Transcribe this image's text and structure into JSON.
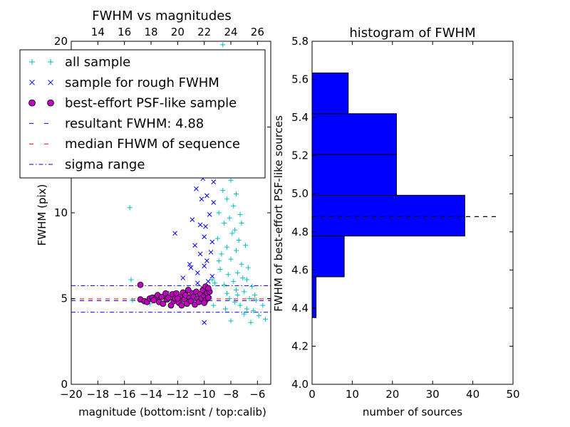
{
  "chart_data": [
    {
      "type": "scatter",
      "title": "FWHM vs magnitudes",
      "xlabel": "magnitude (bottom:isnt / top:calib)",
      "ylabel": "FWHM (pix)",
      "xlim": [
        -20,
        -5
      ],
      "ylim": [
        0,
        20
      ],
      "x_ticks": [
        "−20",
        "−18",
        "−16",
        "−14",
        "−12",
        "−10",
        "−8",
        "−6"
      ],
      "x_tick_values": [
        -20,
        -18,
        -16,
        -14,
        -12,
        -10,
        -8,
        -6
      ],
      "top_ticks": [
        "14",
        "16",
        "18",
        "20",
        "22",
        "24",
        "26"
      ],
      "top_tick_values": [
        14,
        16,
        18,
        20,
        22,
        24,
        26
      ],
      "top_offset": 32,
      "y_ticks": [
        "0",
        "5",
        "10",
        "15",
        "20"
      ],
      "y_tick_values": [
        0,
        5,
        10,
        15,
        20
      ],
      "legend_placement": "upper-left",
      "legend": [
        {
          "label": "all sample",
          "marker": "plus",
          "color": "#00bfbf"
        },
        {
          "label": "sample for rough FWHM",
          "marker": "x",
          "color": "#0000ff"
        },
        {
          "label": "best-effort PSF-like sample",
          "marker": "circle",
          "color": "#bf00bf"
        },
        {
          "label": "resultant FWHM: 4.88",
          "marker": "dash",
          "color": "#0000ff"
        },
        {
          "label": "median FHWM of sequence",
          "marker": "dash",
          "color": "#ff0000"
        },
        {
          "label": "sigma range",
          "marker": "dashdot",
          "color": "#0000ff"
        }
      ],
      "lines": {
        "resultant_fwhm": 4.88,
        "median_fwhm": 4.98,
        "sigma_upper": 5.75,
        "sigma_lower": 4.2
      },
      "series": [
        {
          "name": "all sample",
          "points": [
            [
              -15.6,
              10.3
            ],
            [
              -15.5,
              6.1
            ],
            [
              -15.4,
              4.9
            ],
            [
              -14.1,
              4.7
            ],
            [
              -12.5,
              5.2
            ],
            [
              -11.2,
              5.5
            ],
            [
              -10.6,
              5.1
            ],
            [
              -10.1,
              4.8
            ],
            [
              -9.6,
              5.4
            ],
            [
              -9.4,
              6.1
            ],
            [
              -9.3,
              4.6
            ],
            [
              -9.1,
              12.2
            ],
            [
              -9.0,
              8.5
            ],
            [
              -8.9,
              10.0
            ],
            [
              -8.8,
              6.7
            ],
            [
              -8.7,
              13.5
            ],
            [
              -8.7,
              7.6
            ],
            [
              -8.6,
              11.3
            ],
            [
              -8.5,
              5.8
            ],
            [
              -8.5,
              9.4
            ],
            [
              -8.4,
              12.7
            ],
            [
              -8.4,
              4.4
            ],
            [
              -8.3,
              8.0
            ],
            [
              -8.3,
              10.8
            ],
            [
              -8.2,
              14.3
            ],
            [
              -8.2,
              6.4
            ],
            [
              -8.1,
              9.7
            ],
            [
              -8.1,
              5.0
            ],
            [
              -8.0,
              11.9
            ],
            [
              -8.0,
              7.3
            ],
            [
              -7.9,
              13.0
            ],
            [
              -7.9,
              8.8
            ],
            [
              -7.8,
              6.0
            ],
            [
              -7.8,
              10.4
            ],
            [
              -7.7,
              4.8
            ],
            [
              -7.7,
              9.0
            ],
            [
              -7.6,
              7.8
            ],
            [
              -7.6,
              11.1
            ],
            [
              -7.5,
              6.5
            ],
            [
              -7.5,
              5.2
            ],
            [
              -7.4,
              8.4
            ],
            [
              -7.3,
              9.9
            ],
            [
              -7.3,
              4.6
            ],
            [
              -7.2,
              7.0
            ],
            [
              -7.1,
              6.2
            ],
            [
              -7.0,
              5.4
            ],
            [
              -6.9,
              8.1
            ],
            [
              -6.8,
              4.4
            ],
            [
              -6.7,
              6.8
            ],
            [
              -6.6,
              5.0
            ],
            [
              -6.5,
              3.6
            ],
            [
              -6.4,
              5.7
            ],
            [
              -6.3,
              4.3
            ],
            [
              -6.1,
              4.9
            ],
            [
              -5.9,
              4.0
            ],
            [
              -5.6,
              4.6
            ],
            [
              -5.4,
              3.8
            ],
            [
              -8.6,
              19.8
            ],
            [
              -8.4,
              15.6
            ],
            [
              -10.0,
              19.3
            ],
            [
              -8.2,
              17.1
            ],
            [
              -8.8,
              14.8
            ],
            [
              -7.2,
              9.4
            ],
            [
              -8.9,
              7.2
            ],
            [
              -9.2,
              5.9
            ],
            [
              -6.8,
              6.1
            ],
            [
              -7.6,
              5.5
            ],
            [
              -8.3,
              5.3
            ],
            [
              -9.7,
              5.0
            ],
            [
              -6.2,
              5.2
            ],
            [
              -7.0,
              4.1
            ],
            [
              -8.0,
              3.7
            ]
          ]
        },
        {
          "name": "sample for rough FWHM",
          "points": [
            [
              -12.2,
              8.8
            ],
            [
              -11.6,
              6.2
            ],
            [
              -11.3,
              13.7
            ],
            [
              -11.1,
              7.0
            ],
            [
              -10.9,
              9.6
            ],
            [
              -10.8,
              15.3
            ],
            [
              -10.7,
              8.1
            ],
            [
              -10.6,
              11.4
            ],
            [
              -10.5,
              6.5
            ],
            [
              -10.4,
              13.0
            ],
            [
              -10.3,
              7.6
            ],
            [
              -10.2,
              10.8
            ],
            [
              -10.1,
              5.6
            ],
            [
              -10.1,
              12.0
            ],
            [
              -10.0,
              8.6
            ],
            [
              -10.0,
              6.9
            ],
            [
              -9.9,
              14.3
            ],
            [
              -9.9,
              9.2
            ],
            [
              -9.8,
              7.2
            ],
            [
              -9.8,
              11.0
            ],
            [
              -9.7,
              6.0
            ],
            [
              -9.7,
              12.7
            ],
            [
              -9.6,
              9.9
            ],
            [
              -9.5,
              7.7
            ],
            [
              -9.5,
              13.3
            ],
            [
              -9.4,
              8.3
            ],
            [
              -9.4,
              6.3
            ],
            [
              -9.3,
              10.6
            ],
            [
              -9.3,
              11.8
            ],
            [
              -10.0,
              3.6
            ],
            [
              -13.6,
              5.1
            ],
            [
              -12.8,
              5.3
            ],
            [
              -11.8,
              5.2
            ],
            [
              -10.5,
              5.9
            ],
            [
              -9.9,
              5.5
            ],
            [
              -9.6,
              5.2
            ],
            [
              -11.0,
              6.8
            ],
            [
              -10.3,
              9.3
            ],
            [
              -9.6,
              14.8
            ],
            [
              -10.8,
              12.3
            ]
          ]
        },
        {
          "name": "best-effort PSF-like sample",
          "points": [
            [
              -14.8,
              5.8
            ],
            [
              -14.8,
              4.95
            ],
            [
              -14.5,
              4.85
            ],
            [
              -14.3,
              4.8
            ],
            [
              -14.1,
              5.0
            ],
            [
              -13.9,
              5.05
            ],
            [
              -13.7,
              4.95
            ],
            [
              -13.5,
              5.2
            ],
            [
              -13.4,
              4.8
            ],
            [
              -13.2,
              5.1
            ],
            [
              -13.1,
              4.7
            ],
            [
              -12.9,
              5.3
            ],
            [
              -12.8,
              4.95
            ],
            [
              -12.7,
              5.05
            ],
            [
              -12.5,
              4.6
            ],
            [
              -12.4,
              5.25
            ],
            [
              -12.3,
              4.85
            ],
            [
              -12.2,
              5.0
            ],
            [
              -12.1,
              5.3
            ],
            [
              -11.9,
              4.75
            ],
            [
              -11.8,
              5.1
            ],
            [
              -11.7,
              4.6
            ],
            [
              -11.6,
              5.35
            ],
            [
              -11.5,
              4.95
            ],
            [
              -11.4,
              5.2
            ],
            [
              -11.3,
              4.7
            ],
            [
              -11.2,
              5.5
            ],
            [
              -11.1,
              5.05
            ],
            [
              -11.0,
              4.85
            ],
            [
              -10.9,
              5.3
            ],
            [
              -10.8,
              5.1
            ],
            [
              -10.7,
              4.65
            ],
            [
              -10.6,
              5.4
            ],
            [
              -10.5,
              5.0
            ],
            [
              -10.4,
              4.8
            ],
            [
              -10.3,
              5.25
            ],
            [
              -10.2,
              5.0
            ],
            [
              -10.1,
              5.5
            ],
            [
              -10.0,
              5.15
            ],
            [
              -9.9,
              4.9
            ],
            [
              -9.8,
              5.3
            ],
            [
              -9.7,
              5.05
            ],
            [
              -9.6,
              5.4
            ],
            [
              -9.9,
              5.7
            ],
            [
              -9.7,
              5.6
            ],
            [
              -10.0,
              4.75
            ],
            [
              -12.0,
              5.0
            ],
            [
              -13.8,
              4.9
            ]
          ]
        }
      ]
    },
    {
      "type": "bar",
      "orientation": "horizontal",
      "title": "histogram of FWHM",
      "xlabel": "number of sources",
      "ylabel": "FWHM of best-effort PSF-like sources",
      "xlim": [
        0,
        50
      ],
      "ylim": [
        4.0,
        5.8
      ],
      "x_ticks": [
        "0",
        "10",
        "20",
        "30",
        "40",
        "50"
      ],
      "x_tick_values": [
        0,
        10,
        20,
        30,
        40,
        50
      ],
      "y_ticks": [
        "4.0",
        "4.2",
        "4.4",
        "4.6",
        "4.8",
        "5.0",
        "5.2",
        "5.4",
        "5.6",
        "5.8"
      ],
      "y_tick_values": [
        4.0,
        4.2,
        4.4,
        4.6,
        4.8,
        5.0,
        5.2,
        5.4,
        5.6,
        5.8
      ],
      "bar_color": "#0000ff",
      "bins": [
        {
          "low": 4.35,
          "high": 4.564,
          "count": 1
        },
        {
          "low": 4.564,
          "high": 4.778,
          "count": 8
        },
        {
          "low": 4.778,
          "high": 4.992,
          "count": 38
        },
        {
          "low": 4.992,
          "high": 5.206,
          "count": 21
        },
        {
          "low": 5.206,
          "high": 5.42,
          "count": 21
        },
        {
          "low": 5.42,
          "high": 5.634,
          "count": 9
        }
      ],
      "reference_line": {
        "y": 4.88,
        "x_to": 46
      }
    }
  ]
}
